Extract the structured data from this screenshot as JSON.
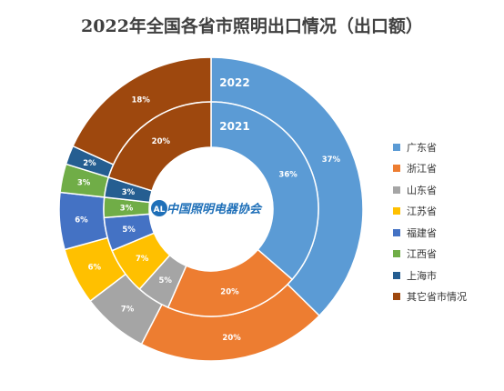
{
  "title": "2022年全国各省市照明出口情况（出口额）",
  "logo_text": "中国照明电器协会",
  "chart_data": {
    "type": "doughnut",
    "title": "2022年全国各省市照明出口情况（出口额）",
    "legend_position": "right",
    "categories": [
      "广东省",
      "浙江省",
      "山东省",
      "江苏省",
      "福建省",
      "江西省",
      "上海市",
      "其它省市情况"
    ],
    "colors": [
      "#5B9BD5",
      "#ED7D31",
      "#A5A5A5",
      "#FFC000",
      "#4472C4",
      "#70AD47",
      "#255E91",
      "#9E480E"
    ],
    "series": [
      {
        "name": "2022",
        "values": [
          37,
          20,
          7,
          6,
          6,
          3,
          2,
          18
        ]
      },
      {
        "name": "2021",
        "values": [
          36,
          20,
          5,
          7,
          5,
          3,
          3,
          20
        ]
      }
    ]
  }
}
